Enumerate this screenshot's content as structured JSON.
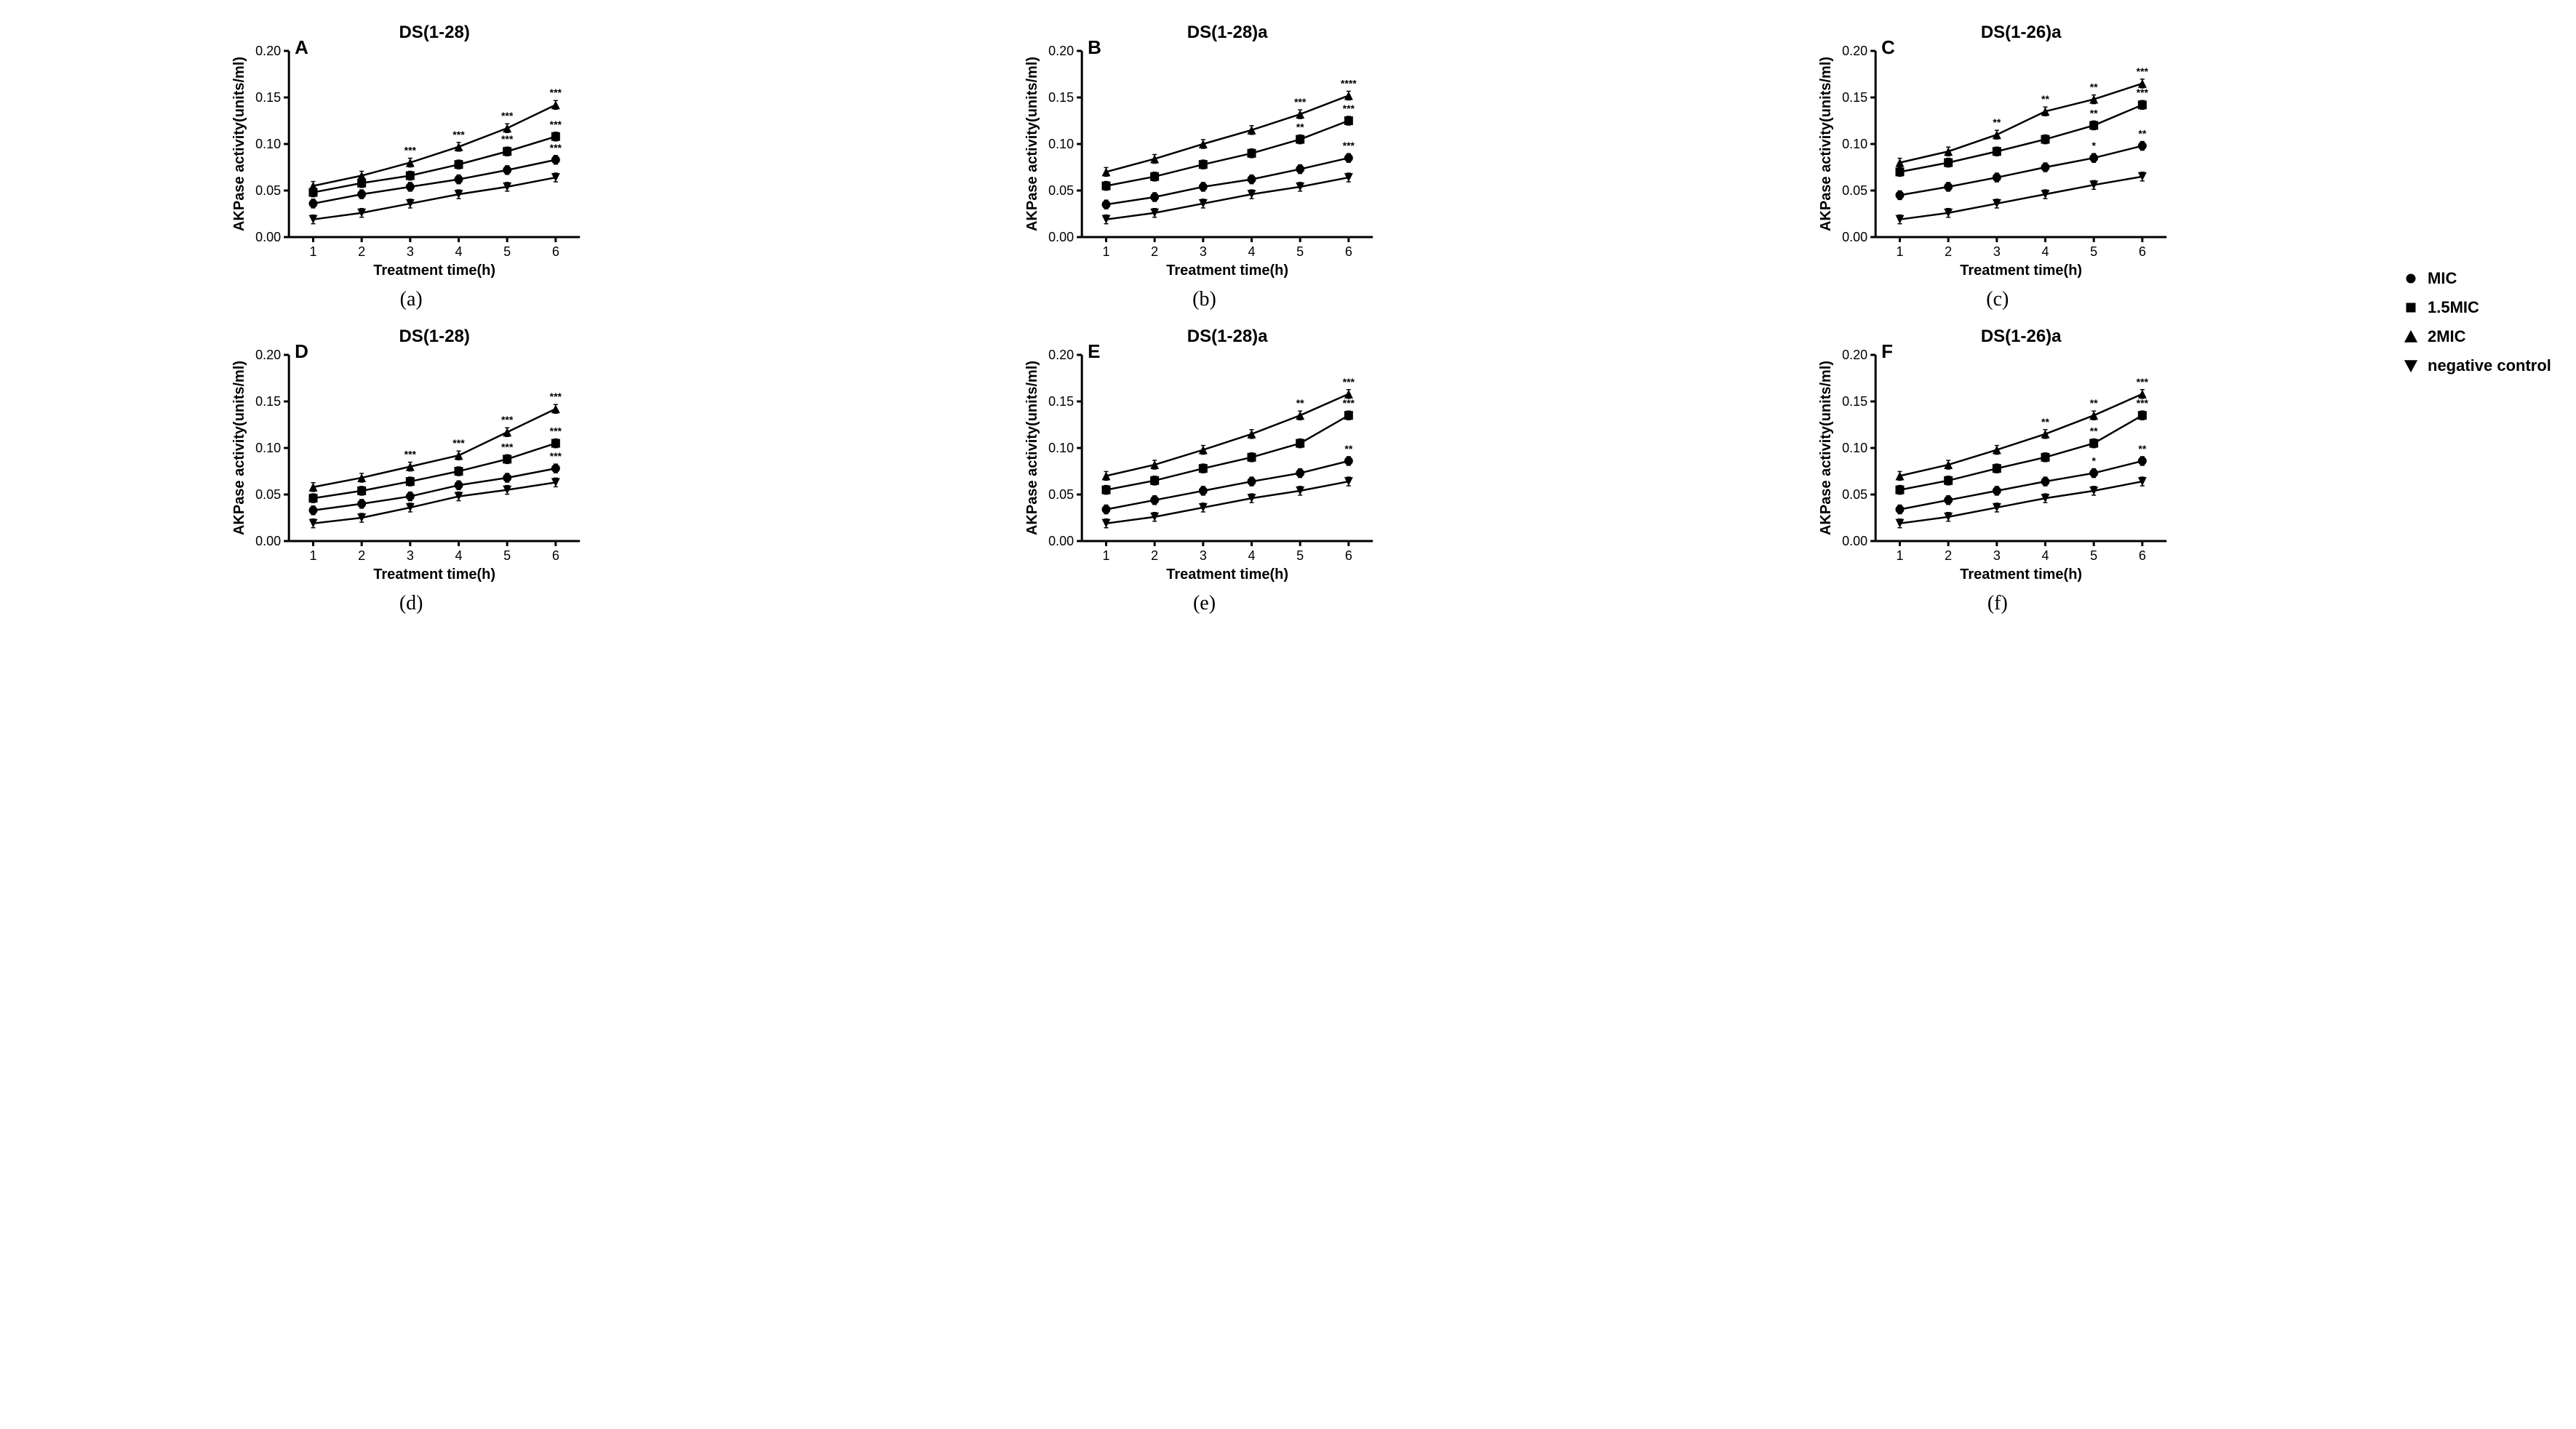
{
  "global": {
    "background_color": "#ffffff",
    "axis_color": "#000000",
    "line_color": "#000000",
    "text_color": "#000000",
    "tick_fontsize": 18,
    "label_fontsize": 20,
    "title_fontsize": 24,
    "corner_fontsize": 26,
    "sublabel_fontsize": 28,
    "line_width": 2.5,
    "marker_size": 8,
    "xlim": [
      0.5,
      6.5
    ],
    "ylim": [
      0,
      0.2
    ],
    "xticks": [
      1,
      2,
      3,
      4,
      5,
      6
    ],
    "yticks": [
      0.0,
      0.05,
      0.1,
      0.15,
      0.2
    ],
    "xlabel": "Treatment time(h)",
    "ylabel": "AKPase activity(units/ml)"
  },
  "legend": {
    "items": [
      {
        "label": "MIC",
        "marker": "circle"
      },
      {
        "label": "1.5MIC",
        "marker": "square"
      },
      {
        "label": "2MIC",
        "marker": "triangle-up"
      },
      {
        "label": "negative control",
        "marker": "triangle-down"
      }
    ]
  },
  "panels": [
    {
      "id": "A",
      "title": "DS(1-28)",
      "corner": "A",
      "sublabel": "(a)",
      "series": [
        {
          "marker": "triangle-up",
          "y": [
            0.055,
            0.066,
            0.08,
            0.097,
            0.117,
            0.142
          ],
          "sig": [
            "",
            "",
            "***",
            "***",
            "***",
            "***"
          ]
        },
        {
          "marker": "square",
          "y": [
            0.048,
            0.058,
            0.066,
            0.078,
            0.092,
            0.108
          ],
          "sig": [
            "",
            "",
            "",
            "",
            "***",
            "***"
          ]
        },
        {
          "marker": "circle",
          "y": [
            0.036,
            0.046,
            0.054,
            0.062,
            0.072,
            0.083
          ],
          "sig": [
            "",
            "",
            "",
            "",
            "",
            "***"
          ]
        },
        {
          "marker": "triangle-down",
          "y": [
            0.019,
            0.026,
            0.036,
            0.046,
            0.054,
            0.064
          ],
          "sig": [
            "",
            "",
            "",
            "",
            "",
            ""
          ]
        }
      ]
    },
    {
      "id": "B",
      "title": "DS(1-28)a",
      "corner": "B",
      "sublabel": "(b)",
      "series": [
        {
          "marker": "triangle-up",
          "y": [
            0.07,
            0.084,
            0.1,
            0.115,
            0.132,
            0.152
          ],
          "sig": [
            "",
            "",
            "",
            "",
            "***",
            "****"
          ]
        },
        {
          "marker": "square",
          "y": [
            0.055,
            0.065,
            0.078,
            0.09,
            0.105,
            0.125
          ],
          "sig": [
            "",
            "",
            "",
            "",
            "**",
            "***"
          ]
        },
        {
          "marker": "circle",
          "y": [
            0.035,
            0.043,
            0.054,
            0.062,
            0.073,
            0.085
          ],
          "sig": [
            "",
            "",
            "",
            "",
            "",
            "***"
          ]
        },
        {
          "marker": "triangle-down",
          "y": [
            0.019,
            0.026,
            0.036,
            0.046,
            0.054,
            0.064
          ],
          "sig": [
            "",
            "",
            "",
            "",
            "",
            ""
          ]
        }
      ]
    },
    {
      "id": "C",
      "title": "DS(1-26)a",
      "corner": "C",
      "sublabel": "(c)",
      "series": [
        {
          "marker": "triangle-up",
          "y": [
            0.08,
            0.092,
            0.11,
            0.135,
            0.148,
            0.165
          ],
          "sig": [
            "",
            "",
            "**",
            "**",
            "**",
            "***"
          ]
        },
        {
          "marker": "square",
          "y": [
            0.07,
            0.08,
            0.092,
            0.105,
            0.12,
            0.142
          ],
          "sig": [
            "",
            "",
            "",
            "",
            "**",
            "***"
          ]
        },
        {
          "marker": "circle",
          "y": [
            0.045,
            0.054,
            0.064,
            0.075,
            0.085,
            0.098
          ],
          "sig": [
            "",
            "",
            "",
            "",
            "*",
            "**"
          ]
        },
        {
          "marker": "triangle-down",
          "y": [
            0.019,
            0.026,
            0.036,
            0.046,
            0.056,
            0.065
          ],
          "sig": [
            "",
            "",
            "",
            "",
            "",
            ""
          ]
        }
      ]
    },
    {
      "id": "D",
      "title": "DS(1-28)",
      "corner": "D",
      "sublabel": "(d)",
      "series": [
        {
          "marker": "triangle-up",
          "y": [
            0.058,
            0.068,
            0.08,
            0.092,
            0.117,
            0.142
          ],
          "sig": [
            "",
            "",
            "***",
            "***",
            "***",
            "***"
          ]
        },
        {
          "marker": "square",
          "y": [
            0.046,
            0.054,
            0.064,
            0.075,
            0.088,
            0.105
          ],
          "sig": [
            "",
            "",
            "",
            "",
            "***",
            "***"
          ]
        },
        {
          "marker": "circle",
          "y": [
            0.033,
            0.04,
            0.048,
            0.06,
            0.068,
            0.078
          ],
          "sig": [
            "",
            "",
            "",
            "",
            "",
            "***"
          ]
        },
        {
          "marker": "triangle-down",
          "y": [
            0.019,
            0.025,
            0.036,
            0.048,
            0.055,
            0.063
          ],
          "sig": [
            "",
            "",
            "",
            "",
            "",
            ""
          ]
        }
      ]
    },
    {
      "id": "E",
      "title": "DS(1-28)a",
      "corner": "E",
      "sublabel": "(e)",
      "series": [
        {
          "marker": "triangle-up",
          "y": [
            0.07,
            0.082,
            0.098,
            0.115,
            0.135,
            0.158
          ],
          "sig": [
            "",
            "",
            "",
            "",
            "**",
            "***"
          ]
        },
        {
          "marker": "square",
          "y": [
            0.055,
            0.065,
            0.078,
            0.09,
            0.105,
            0.135
          ],
          "sig": [
            "",
            "",
            "",
            "",
            "",
            "***"
          ]
        },
        {
          "marker": "circle",
          "y": [
            0.034,
            0.044,
            0.054,
            0.064,
            0.073,
            0.086
          ],
          "sig": [
            "",
            "",
            "",
            "",
            "",
            "**"
          ]
        },
        {
          "marker": "triangle-down",
          "y": [
            0.019,
            0.026,
            0.036,
            0.046,
            0.054,
            0.064
          ],
          "sig": [
            "",
            "",
            "",
            "",
            "",
            ""
          ]
        }
      ]
    },
    {
      "id": "F",
      "title": "DS(1-26)a",
      "corner": "F",
      "sublabel": "(f)",
      "series": [
        {
          "marker": "triangle-up",
          "y": [
            0.07,
            0.082,
            0.098,
            0.115,
            0.135,
            0.158
          ],
          "sig": [
            "",
            "",
            "",
            "**",
            "**",
            "***"
          ]
        },
        {
          "marker": "square",
          "y": [
            0.055,
            0.065,
            0.078,
            0.09,
            0.105,
            0.135
          ],
          "sig": [
            "",
            "",
            "",
            "",
            "**",
            "***"
          ]
        },
        {
          "marker": "circle",
          "y": [
            0.034,
            0.044,
            0.054,
            0.064,
            0.073,
            0.086
          ],
          "sig": [
            "",
            "",
            "",
            "",
            "*",
            "**"
          ]
        },
        {
          "marker": "triangle-down",
          "y": [
            0.019,
            0.026,
            0.036,
            0.046,
            0.054,
            0.064
          ],
          "sig": [
            "",
            "",
            "",
            "",
            "",
            ""
          ]
        }
      ]
    }
  ]
}
